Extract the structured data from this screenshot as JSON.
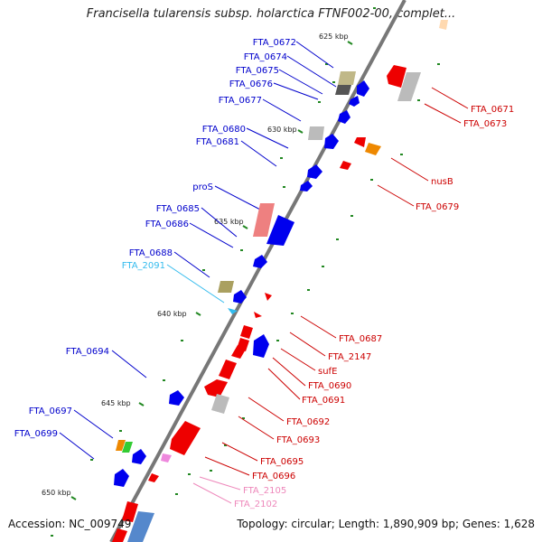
{
  "title": "Francisella tularensis subsp. holarctica FTNF002-00, complet...",
  "footer": {
    "accession": "Accession: NC_009749",
    "topology": "Topology: circular; Length: 1,890,909 bp; Genes: 1,628"
  },
  "scale": [
    "625 kbp",
    "630 kbp",
    "635 kbp",
    "640 kbp",
    "645 kbp",
    "650 kbp"
  ],
  "left_labels": [
    "FTA_0672",
    "FTA_0674",
    "FTA_0675",
    "FTA_0676",
    "FTA_0677",
    "FTA_0680",
    "FTA_0681",
    "proS",
    "FTA_0685",
    "FTA_0686",
    "FTA_0688",
    "FTA_2091",
    "FTA_0694",
    "FTA_0697",
    "FTA_0699"
  ],
  "right_labels": [
    "FTA_0671",
    "FTA_0673",
    "nusB",
    "FTA_0679",
    "FTA_0687",
    "FTA_2147",
    "sufE",
    "FTA_0690",
    "FTA_0691",
    "FTA_0692",
    "FTA_0693",
    "FTA_0695",
    "FTA_0696",
    "FTA_2105",
    "FTA_2102"
  ],
  "colors": {
    "backbone": "#777777",
    "forward_gene": "#0000ee",
    "reverse_gene": "#ee0000",
    "forward_label": "#0000cc",
    "reverse_label": "#cc0000",
    "trna_label": "#33bbee",
    "misc_label": "#ee88bb",
    "tick": "#228822"
  }
}
